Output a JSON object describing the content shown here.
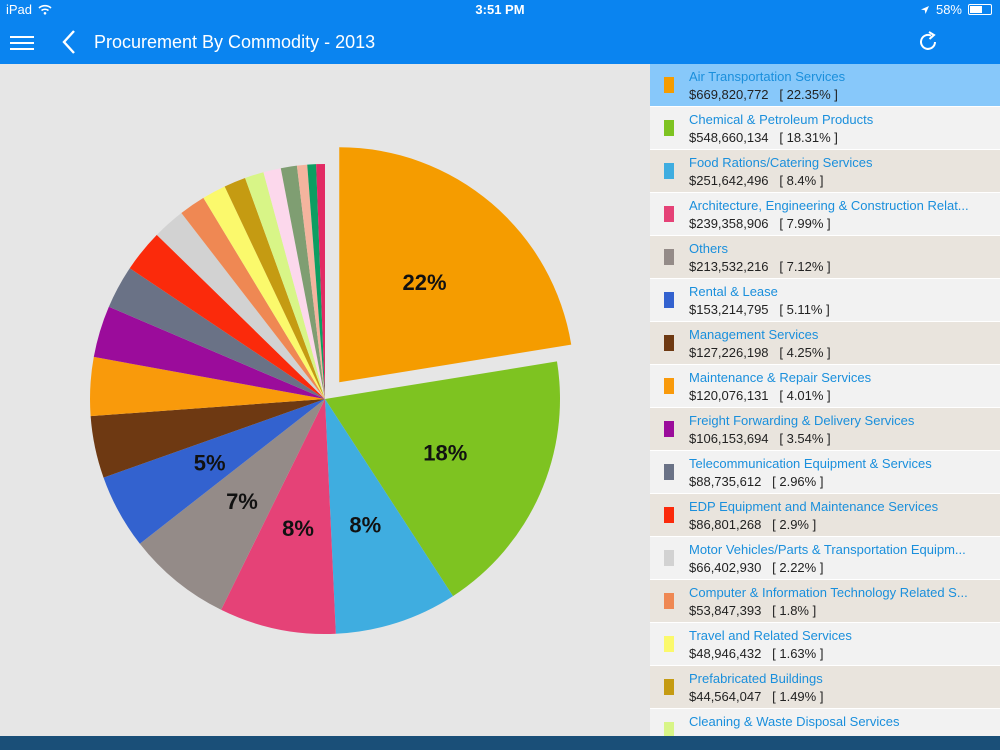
{
  "status": {
    "device": "iPad",
    "time": "3:51 PM",
    "battery": "58%",
    "battery_level": 0.58
  },
  "header": {
    "title": "Procurement By Commodity - 2013"
  },
  "icons": {
    "menu": "hamburger-icon",
    "back": "chevron-left-icon",
    "refresh": "refresh-icon",
    "wifi": "wifi-icon",
    "location": "location-arrow-icon",
    "battery": "battery-icon"
  },
  "chart_data": {
    "type": "pie",
    "exploded_slice": 0,
    "slice_labels": [
      "22%",
      "18%",
      "8%",
      "8%",
      "7%",
      "5%"
    ],
    "slices": [
      {
        "name": "Air Transportation Services",
        "value": 669820772,
        "amount": "$669,820,772",
        "percent": "[ 22.35% ]",
        "pct": 22.35,
        "color": "#f59c00"
      },
      {
        "name": "Chemical & Petroleum Products",
        "value": 548660134,
        "amount": "$548,660,134",
        "percent": "[ 18.31% ]",
        "pct": 18.31,
        "color": "#7ec321"
      },
      {
        "name": "Food Rations/Catering Services",
        "value": 251642496,
        "amount": "$251,642,496",
        "percent": "[ 8.4% ]",
        "pct": 8.4,
        "color": "#3fade0"
      },
      {
        "name": "Architecture, Engineering & Construction Relat...",
        "value": 239358906,
        "amount": "$239,358,906",
        "percent": "[ 7.99% ]",
        "pct": 7.99,
        "color": "#e54277"
      },
      {
        "name": "Others",
        "value": 213532216,
        "amount": "$213,532,216",
        "percent": "[ 7.12% ]",
        "pct": 7.12,
        "color": "#948b88"
      },
      {
        "name": "Rental & Lease",
        "value": 153214795,
        "amount": "$153,214,795",
        "percent": "[ 5.11% ]",
        "pct": 5.11,
        "color": "#3362cf"
      },
      {
        "name": "Management Services",
        "value": 127226198,
        "amount": "$127,226,198",
        "percent": "[ 4.25% ]",
        "pct": 4.25,
        "color": "#6e3912"
      },
      {
        "name": "Maintenance & Repair Services",
        "value": 120076131,
        "amount": "$120,076,131",
        "percent": "[ 4.01% ]",
        "pct": 4.01,
        "color": "#f99a0b"
      },
      {
        "name": "Freight Forwarding & Delivery Services",
        "value": 106153694,
        "amount": "$106,153,694",
        "percent": "[ 3.54% ]",
        "pct": 3.54,
        "color": "#9b0c9b"
      },
      {
        "name": "Telecommunication Equipment & Services",
        "value": 88735612,
        "amount": "$88,735,612",
        "percent": "[ 2.96% ]",
        "pct": 2.96,
        "color": "#6a7286"
      },
      {
        "name": "EDP Equipment and Maintenance Services",
        "value": 86801268,
        "amount": "$86,801,268",
        "percent": "[ 2.9% ]",
        "pct": 2.9,
        "color": "#fb2a0b"
      },
      {
        "name": "Motor Vehicles/Parts & Transportation Equipm...",
        "value": 66402930,
        "amount": "$66,402,930",
        "percent": "[ 2.22% ]",
        "pct": 2.22,
        "color": "#d2d2d2"
      },
      {
        "name": "Computer & Information Technology Related S...",
        "value": 53847393,
        "amount": "$53,847,393",
        "percent": "[ 1.8% ]",
        "pct": 1.8,
        "color": "#ef8853"
      },
      {
        "name": "Travel and Related Services",
        "value": 48946432,
        "amount": "$48,946,432",
        "percent": "[ 1.63% ]",
        "pct": 1.63,
        "color": "#fbf96c"
      },
      {
        "name": "Prefabricated Buildings",
        "value": 44564047,
        "amount": "$44,564,047",
        "percent": "[ 1.49% ]",
        "pct": 1.49,
        "color": "#c59b12"
      },
      {
        "name": "Cleaning & Waste Disposal Services",
        "value": null,
        "amount": "",
        "percent": "",
        "pct": 1.3,
        "color": "#d8f587"
      },
      {
        "name": "",
        "value": null,
        "amount": "",
        "percent": "",
        "pct": 1.2,
        "color": "#fcd8ec"
      },
      {
        "name": "",
        "value": null,
        "amount": "",
        "percent": "",
        "pct": 1.1,
        "color": "#7f9e72"
      },
      {
        "name": "",
        "value": null,
        "amount": "",
        "percent": "",
        "pct": 0.7,
        "color": "#f4b49e"
      },
      {
        "name": "",
        "value": null,
        "amount": "",
        "percent": "",
        "pct": 0.6,
        "color": "#0d9e62"
      },
      {
        "name": "",
        "value": null,
        "amount": "",
        "percent": "",
        "pct": 0.6,
        "color": "#e22a63"
      }
    ]
  }
}
